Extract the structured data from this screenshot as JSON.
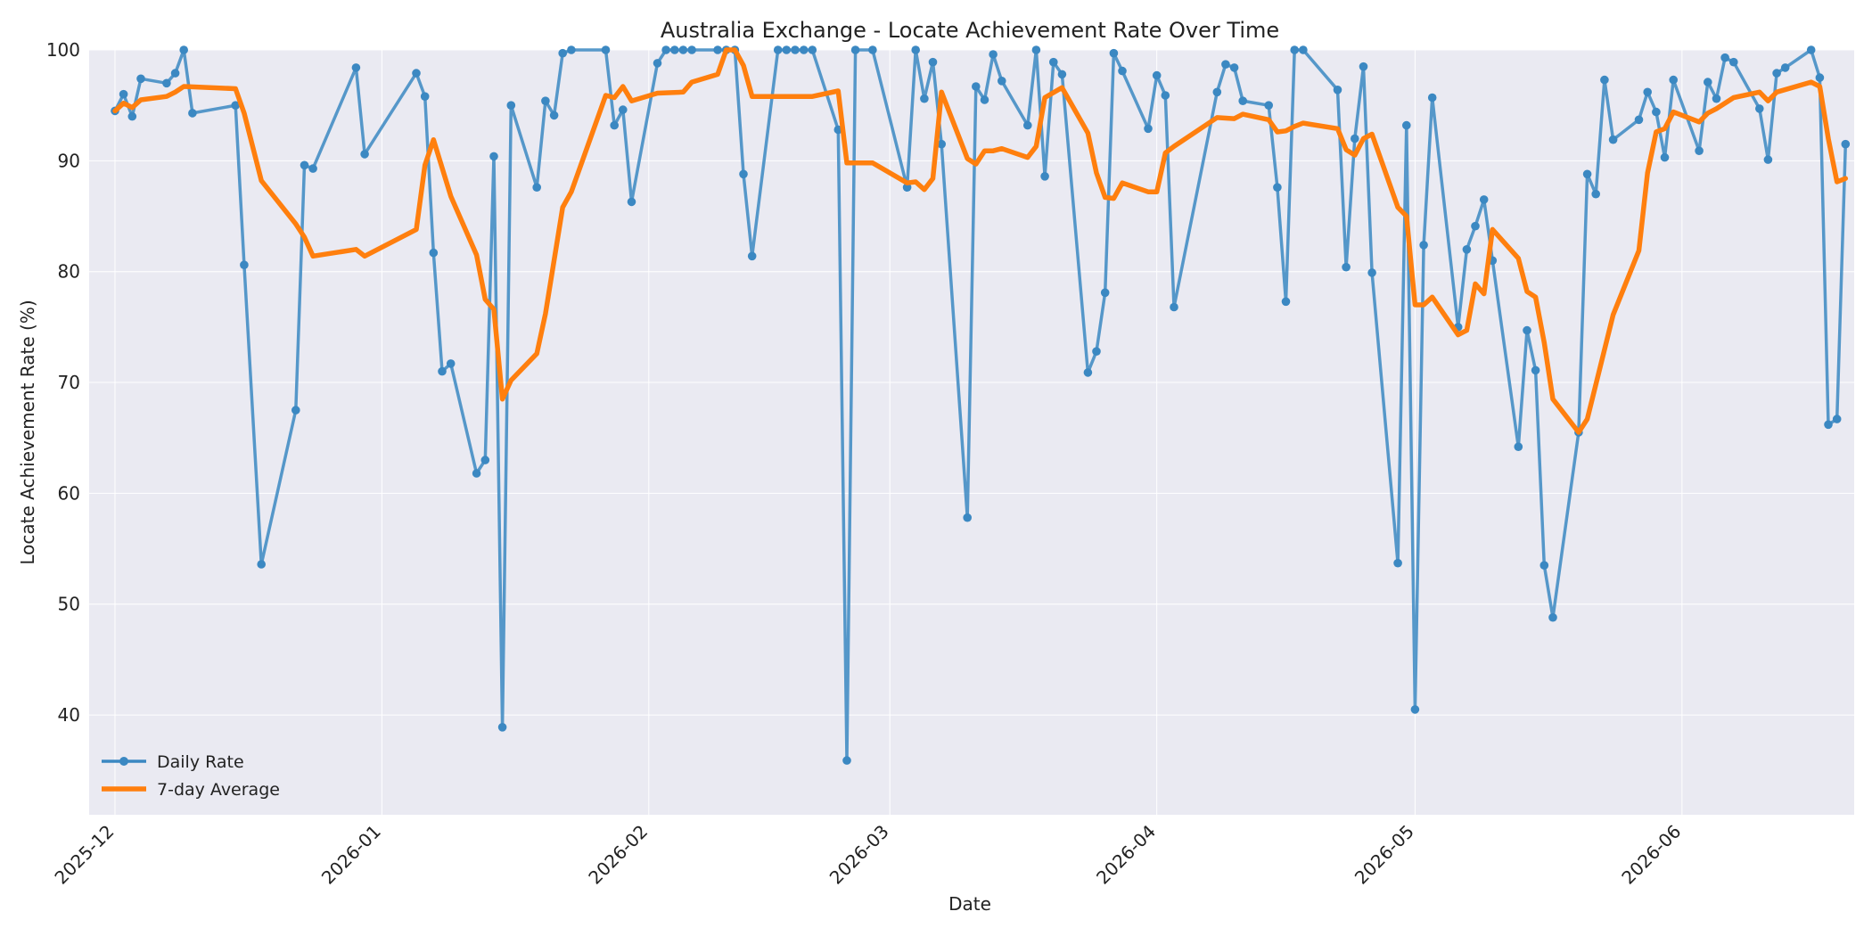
{
  "chart_data": {
    "type": "line",
    "title": "Australia Exchange - Locate Achievement Rate Over Time",
    "xlabel": "Date",
    "ylabel": "Locate Achievement Rate (%)",
    "xlim": [
      "2025-11-28",
      "2026-06-21"
    ],
    "ylim": [
      31,
      100
    ],
    "x_ticks": [
      "2025-12",
      "2026-01",
      "2026-02",
      "2026-03",
      "2026-04",
      "2026-05",
      "2026-06"
    ],
    "y_ticks": [
      40,
      50,
      60,
      70,
      80,
      90,
      100
    ],
    "grid": true,
    "legend_position": "lower-left",
    "series": [
      {
        "name": "Daily Rate",
        "color": "#3b88c2",
        "marker": "circle",
        "points": [
          [
            "2025-12-01",
            94.5
          ],
          [
            "2025-12-02",
            96.0
          ],
          [
            "2025-12-03",
            94.0
          ],
          [
            "2025-12-04",
            97.4
          ],
          [
            "2025-12-07",
            97.0
          ],
          [
            "2025-12-08",
            97.9
          ],
          [
            "2025-12-09",
            100.0
          ],
          [
            "2025-12-10",
            94.3
          ],
          [
            "2025-12-15",
            95.0
          ],
          [
            "2025-12-16",
            80.6
          ],
          [
            "2025-12-18",
            53.6
          ],
          [
            "2025-12-22",
            67.5
          ],
          [
            "2025-12-23",
            89.6
          ],
          [
            "2025-12-24",
            89.3
          ],
          [
            "2025-12-29",
            98.4
          ],
          [
            "2025-12-30",
            90.6
          ],
          [
            "2026-01-05",
            97.9
          ],
          [
            "2026-01-06",
            95.8
          ],
          [
            "2026-01-07",
            81.7
          ],
          [
            "2026-01-08",
            71.0
          ],
          [
            "2026-01-09",
            71.7
          ],
          [
            "2026-01-12",
            61.8
          ],
          [
            "2026-01-13",
            63.0
          ],
          [
            "2026-01-14",
            90.4
          ],
          [
            "2026-01-15",
            38.9
          ],
          [
            "2026-01-16",
            95.0
          ],
          [
            "2026-01-19",
            87.6
          ],
          [
            "2026-01-20",
            95.4
          ],
          [
            "2026-01-21",
            94.1
          ],
          [
            "2026-01-22",
            99.7
          ],
          [
            "2026-01-23",
            100.0
          ],
          [
            "2026-01-27",
            100.0
          ],
          [
            "2026-01-28",
            93.2
          ],
          [
            "2026-01-29",
            94.6
          ],
          [
            "2026-01-30",
            86.3
          ],
          [
            "2026-02-02",
            98.8
          ],
          [
            "2026-02-03",
            100.0
          ],
          [
            "2026-02-04",
            100.0
          ],
          [
            "2026-02-05",
            100.0
          ],
          [
            "2026-02-06",
            100.0
          ],
          [
            "2026-02-09",
            100.0
          ],
          [
            "2026-02-10",
            100.0
          ],
          [
            "2026-02-11",
            100.0
          ],
          [
            "2026-02-12",
            88.8
          ],
          [
            "2026-02-13",
            81.4
          ],
          [
            "2026-02-16",
            100.0
          ],
          [
            "2026-02-17",
            100.0
          ],
          [
            "2026-02-18",
            100.0
          ],
          [
            "2026-02-19",
            100.0
          ],
          [
            "2026-02-20",
            100.0
          ],
          [
            "2026-02-23",
            92.8
          ],
          [
            "2026-02-24",
            35.9
          ],
          [
            "2026-02-25",
            100.0
          ],
          [
            "2026-02-27",
            100.0
          ],
          [
            "2026-03-03",
            87.6
          ],
          [
            "2026-03-04",
            100.0
          ],
          [
            "2026-03-05",
            95.6
          ],
          [
            "2026-03-06",
            98.9
          ],
          [
            "2026-03-07",
            91.5
          ],
          [
            "2026-03-10",
            57.8
          ],
          [
            "2026-03-11",
            96.7
          ],
          [
            "2026-03-12",
            95.5
          ],
          [
            "2026-03-13",
            99.6
          ],
          [
            "2026-03-14",
            97.2
          ],
          [
            "2026-03-17",
            93.2
          ],
          [
            "2026-03-18",
            100.0
          ],
          [
            "2026-03-19",
            88.6
          ],
          [
            "2026-03-20",
            98.9
          ],
          [
            "2026-03-21",
            97.8
          ],
          [
            "2026-03-24",
            70.9
          ],
          [
            "2026-03-25",
            72.8
          ],
          [
            "2026-03-26",
            78.1
          ],
          [
            "2026-03-27",
            99.7
          ],
          [
            "2026-03-28",
            98.1
          ],
          [
            "2026-03-31",
            92.9
          ],
          [
            "2026-04-01",
            97.7
          ],
          [
            "2026-04-02",
            95.9
          ],
          [
            "2026-04-03",
            76.8
          ],
          [
            "2026-04-08",
            96.2
          ],
          [
            "2026-04-09",
            98.7
          ],
          [
            "2026-04-10",
            98.4
          ],
          [
            "2026-04-11",
            95.4
          ],
          [
            "2026-04-14",
            95.0
          ],
          [
            "2026-04-15",
            87.6
          ],
          [
            "2026-04-16",
            77.3
          ],
          [
            "2026-04-17",
            100.0
          ],
          [
            "2026-04-18",
            100.0
          ],
          [
            "2026-04-22",
            96.4
          ],
          [
            "2026-04-23",
            80.4
          ],
          [
            "2026-04-24",
            92.0
          ],
          [
            "2026-04-25",
            98.5
          ],
          [
            "2026-04-26",
            79.9
          ],
          [
            "2026-04-29",
            53.7
          ],
          [
            "2026-04-30",
            93.2
          ],
          [
            "2026-05-01",
            40.5
          ],
          [
            "2026-05-02",
            82.4
          ],
          [
            "2026-05-03",
            95.7
          ],
          [
            "2026-05-06",
            75.0
          ],
          [
            "2026-05-07",
            82.0
          ],
          [
            "2026-05-08",
            84.1
          ],
          [
            "2026-05-09",
            86.5
          ],
          [
            "2026-05-10",
            81.0
          ],
          [
            "2026-05-13",
            64.2
          ],
          [
            "2026-05-14",
            74.7
          ],
          [
            "2026-05-15",
            71.1
          ],
          [
            "2026-05-16",
            53.5
          ],
          [
            "2026-05-17",
            48.8
          ],
          [
            "2026-05-20",
            65.5
          ],
          [
            "2026-05-21",
            88.8
          ],
          [
            "2026-05-22",
            87.0
          ],
          [
            "2026-05-23",
            97.3
          ],
          [
            "2026-05-24",
            91.9
          ],
          [
            "2026-05-27",
            93.7
          ],
          [
            "2026-05-28",
            96.2
          ],
          [
            "2026-05-29",
            94.4
          ],
          [
            "2026-05-30",
            90.3
          ],
          [
            "2026-05-31",
            97.3
          ],
          [
            "2026-06-03",
            90.9
          ],
          [
            "2026-06-04",
            97.1
          ],
          [
            "2026-06-05",
            95.6
          ],
          [
            "2026-06-06",
            99.3
          ],
          [
            "2026-06-07",
            98.9
          ],
          [
            "2026-06-10",
            94.7
          ],
          [
            "2026-06-11",
            90.1
          ],
          [
            "2026-06-12",
            97.9
          ],
          [
            "2026-06-13",
            98.4
          ],
          [
            "2026-06-16",
            100.0
          ],
          [
            "2026-06-17",
            97.5
          ],
          [
            "2026-06-18",
            66.2
          ],
          [
            "2026-06-19",
            66.7
          ],
          [
            "2026-06-20",
            91.5
          ]
        ]
      },
      {
        "name": "7-day Average",
        "color": "#ff7f0e",
        "marker": "none",
        "points": [
          [
            "2025-12-01",
            94.5
          ],
          [
            "2025-12-02",
            95.2
          ],
          [
            "2025-12-03",
            94.8
          ],
          [
            "2025-12-04",
            95.5
          ],
          [
            "2025-12-07",
            95.8
          ],
          [
            "2025-12-08",
            96.2
          ],
          [
            "2025-12-09",
            96.7
          ],
          [
            "2025-12-15",
            96.5
          ],
          [
            "2025-12-16",
            94.3
          ],
          [
            "2025-12-18",
            88.2
          ],
          [
            "2025-12-22",
            84.3
          ],
          [
            "2025-12-23",
            83.1
          ],
          [
            "2025-12-24",
            81.4
          ],
          [
            "2025-12-29",
            82.0
          ],
          [
            "2025-12-30",
            81.4
          ],
          [
            "2026-01-05",
            83.8
          ],
          [
            "2026-01-06",
            89.6
          ],
          [
            "2026-01-07",
            91.9
          ],
          [
            "2026-01-09",
            86.8
          ],
          [
            "2026-01-12",
            81.5
          ],
          [
            "2026-01-13",
            77.5
          ],
          [
            "2026-01-14",
            76.6
          ],
          [
            "2026-01-15",
            68.5
          ],
          [
            "2026-01-16",
            70.2
          ],
          [
            "2026-01-19",
            72.6
          ],
          [
            "2026-01-20",
            76.2
          ],
          [
            "2026-01-22",
            85.8
          ],
          [
            "2026-01-23",
            87.2
          ],
          [
            "2026-01-27",
            95.9
          ],
          [
            "2026-01-28",
            95.7
          ],
          [
            "2026-01-29",
            96.7
          ],
          [
            "2026-01-30",
            95.4
          ],
          [
            "2026-02-02",
            96.1
          ],
          [
            "2026-02-05",
            96.2
          ],
          [
            "2026-02-06",
            97.1
          ],
          [
            "2026-02-09",
            97.8
          ],
          [
            "2026-02-10",
            100.0
          ],
          [
            "2026-02-11",
            100.0
          ],
          [
            "2026-02-12",
            98.6
          ],
          [
            "2026-02-13",
            95.8
          ],
          [
            "2026-02-20",
            95.8
          ],
          [
            "2026-02-23",
            96.3
          ],
          [
            "2026-02-24",
            89.8
          ],
          [
            "2026-02-27",
            89.8
          ],
          [
            "2026-03-03",
            88.0
          ],
          [
            "2026-03-04",
            88.1
          ],
          [
            "2026-03-05",
            87.4
          ],
          [
            "2026-03-06",
            88.4
          ],
          [
            "2026-03-07",
            96.2
          ],
          [
            "2026-03-10",
            90.2
          ],
          [
            "2026-03-11",
            89.7
          ],
          [
            "2026-03-12",
            90.9
          ],
          [
            "2026-03-13",
            90.9
          ],
          [
            "2026-03-14",
            91.1
          ],
          [
            "2026-03-17",
            90.3
          ],
          [
            "2026-03-18",
            91.3
          ],
          [
            "2026-03-19",
            95.7
          ],
          [
            "2026-03-21",
            96.6
          ],
          [
            "2026-03-24",
            92.5
          ],
          [
            "2026-03-25",
            88.9
          ],
          [
            "2026-03-26",
            86.7
          ],
          [
            "2026-03-27",
            86.6
          ],
          [
            "2026-03-28",
            88.0
          ],
          [
            "2026-03-31",
            87.2
          ],
          [
            "2026-04-01",
            87.2
          ],
          [
            "2026-04-02",
            90.7
          ],
          [
            "2026-04-03",
            91.3
          ],
          [
            "2026-04-08",
            93.9
          ],
          [
            "2026-04-10",
            93.8
          ],
          [
            "2026-04-11",
            94.2
          ],
          [
            "2026-04-14",
            93.7
          ],
          [
            "2026-04-15",
            92.6
          ],
          [
            "2026-04-16",
            92.7
          ],
          [
            "2026-04-17",
            93.1
          ],
          [
            "2026-04-18",
            93.4
          ],
          [
            "2026-04-22",
            92.9
          ],
          [
            "2026-04-23",
            91.0
          ],
          [
            "2026-04-24",
            90.5
          ],
          [
            "2026-04-25",
            92.0
          ],
          [
            "2026-04-26",
            92.4
          ],
          [
            "2026-04-29",
            85.8
          ],
          [
            "2026-04-30",
            85.0
          ],
          [
            "2026-05-01",
            77.0
          ],
          [
            "2026-05-02",
            77.0
          ],
          [
            "2026-05-03",
            77.7
          ],
          [
            "2026-05-06",
            74.3
          ],
          [
            "2026-05-07",
            74.7
          ],
          [
            "2026-05-08",
            78.9
          ],
          [
            "2026-05-09",
            78.0
          ],
          [
            "2026-05-10",
            83.8
          ],
          [
            "2026-05-13",
            81.2
          ],
          [
            "2026-05-14",
            78.2
          ],
          [
            "2026-05-15",
            77.7
          ],
          [
            "2026-05-16",
            73.6
          ],
          [
            "2026-05-17",
            68.5
          ],
          [
            "2026-05-20",
            65.5
          ],
          [
            "2026-05-21",
            66.7
          ],
          [
            "2026-05-24",
            76.1
          ],
          [
            "2026-05-27",
            81.9
          ],
          [
            "2026-05-28",
            88.9
          ],
          [
            "2026-05-29",
            92.6
          ],
          [
            "2026-05-30",
            92.9
          ],
          [
            "2026-05-31",
            94.4
          ],
          [
            "2026-06-03",
            93.5
          ],
          [
            "2026-06-04",
            94.3
          ],
          [
            "2026-06-05",
            94.7
          ],
          [
            "2026-06-07",
            95.7
          ],
          [
            "2026-06-10",
            96.2
          ],
          [
            "2026-06-11",
            95.4
          ],
          [
            "2026-06-12",
            96.2
          ],
          [
            "2026-06-16",
            97.1
          ],
          [
            "2026-06-17",
            96.7
          ],
          [
            "2026-06-18",
            92.0
          ],
          [
            "2026-06-19",
            88.1
          ],
          [
            "2026-06-20",
            88.4
          ]
        ]
      }
    ]
  }
}
